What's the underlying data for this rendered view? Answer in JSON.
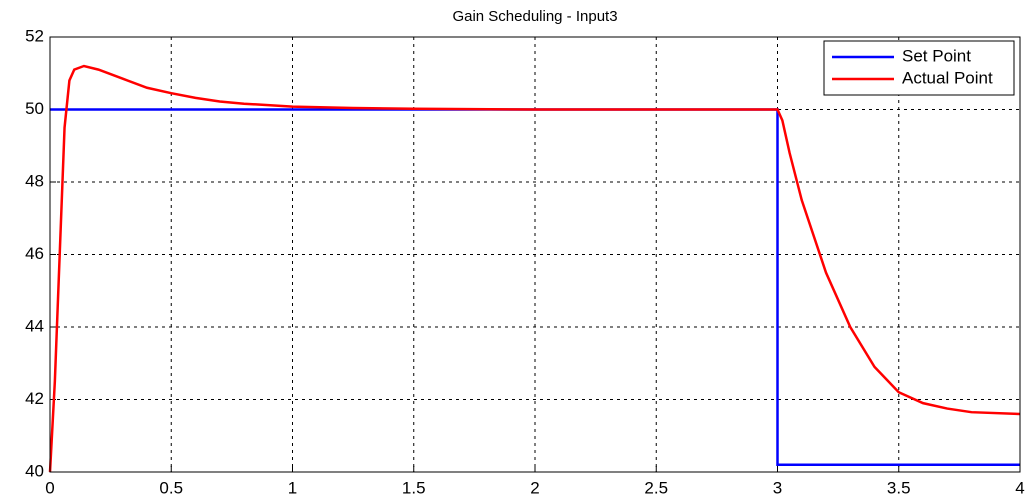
{
  "chart_data": {
    "type": "line",
    "title": "Gain Scheduling - Input3",
    "xlim": [
      0,
      4
    ],
    "xticks": [
      0,
      0.5,
      1,
      1.5,
      2,
      2.5,
      3,
      3.5,
      4
    ],
    "ylim": [
      40,
      52
    ],
    "yticks": [
      40,
      42,
      44,
      46,
      48,
      50,
      52
    ],
    "grid": true,
    "legend": "top-right",
    "series": [
      {
        "name": "Set Point",
        "color": "#0000ff",
        "x": [
          0,
          3,
          3,
          4
        ],
        "values": [
          50,
          50,
          40.2,
          40.2
        ]
      },
      {
        "name": "Actual Point",
        "color": "#ff0000",
        "x": [
          0,
          0.02,
          0.04,
          0.06,
          0.08,
          0.1,
          0.14,
          0.2,
          0.3,
          0.4,
          0.5,
          0.6,
          0.7,
          0.8,
          1.0,
          1.25,
          1.5,
          2,
          3,
          3.02,
          3.05,
          3.1,
          3.2,
          3.3,
          3.4,
          3.5,
          3.6,
          3.7,
          3.8,
          4
        ],
        "values": [
          40,
          42.5,
          46,
          49.5,
          50.8,
          51.1,
          51.2,
          51.1,
          50.85,
          50.6,
          50.45,
          50.32,
          50.22,
          50.16,
          50.08,
          50.04,
          50.02,
          50,
          50,
          49.7,
          48.8,
          47.5,
          45.5,
          44,
          42.9,
          42.2,
          41.9,
          41.75,
          41.65,
          41.6
        ]
      }
    ]
  }
}
